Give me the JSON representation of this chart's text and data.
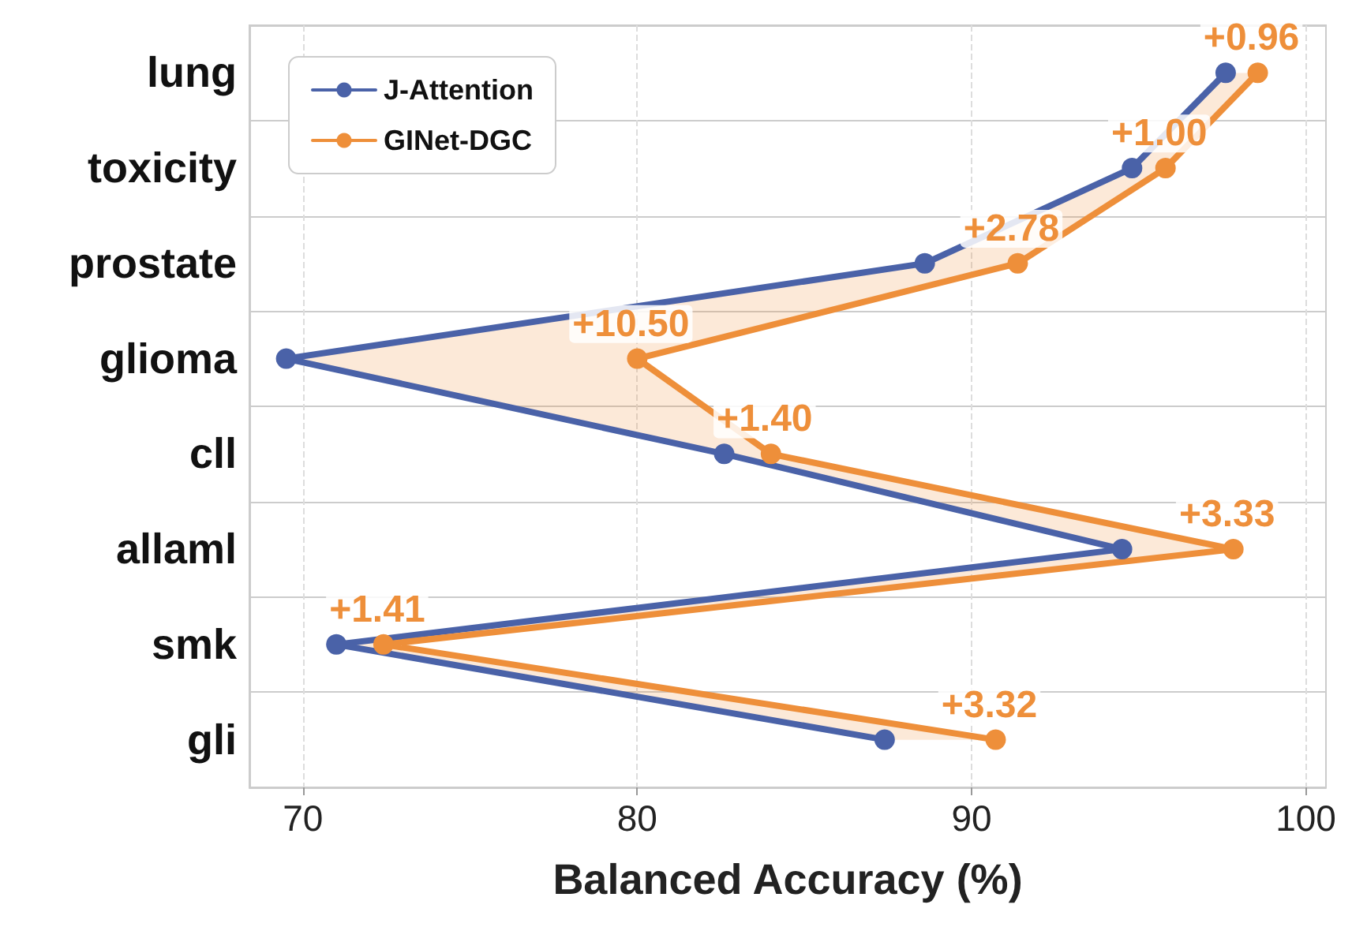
{
  "chart_data": {
    "type": "line",
    "orientation": "horizontal",
    "xlabel": "Balanced Accuracy (%)",
    "categories": [
      "lung",
      "toxicity",
      "prostate",
      "glioma",
      "cll",
      "allaml",
      "smk",
      "gli"
    ],
    "series": [
      {
        "name": "J-Attention",
        "color": "#4a62a8",
        "values": [
          97.6,
          94.8,
          88.6,
          69.5,
          82.6,
          94.5,
          71.0,
          87.4
        ]
      },
      {
        "name": "GINet-DGC",
        "color": "#ee8f3a",
        "values": [
          98.56,
          95.8,
          91.38,
          80.0,
          84.0,
          97.83,
          72.41,
          90.72
        ],
        "lower": [
          97.6,
          94.8,
          88.6,
          69.5,
          82.6,
          94.5,
          71.0,
          87.4
        ],
        "upper": [
          98.56,
          95.8,
          91.38,
          80.0,
          84.0,
          97.83,
          72.41,
          90.72
        ]
      }
    ],
    "xlim": [
      68.4,
      100.6
    ],
    "xticks": [
      70,
      80,
      90,
      100
    ],
    "grid": true,
    "legend": "top left",
    "marker": "circle",
    "line_style": "solid",
    "annotations": [
      {
        "text": "+0.96",
        "x": 98.56,
        "y": "lung"
      },
      {
        "text": "+1.00",
        "x": 95.8,
        "y": "toxicity"
      },
      {
        "text": "+2.78",
        "x": 91.38,
        "y": "prostate"
      },
      {
        "text": "+10.50",
        "x": 80.0,
        "y": "glioma"
      },
      {
        "text": "+1.40",
        "x": 84.0,
        "y": "cll"
      },
      {
        "text": "+3.33",
        "x": 97.83,
        "y": "allaml"
      },
      {
        "text": "+1.41",
        "x": 72.41,
        "y": "smk"
      },
      {
        "text": "+3.32",
        "x": 90.72,
        "y": "gli"
      }
    ]
  }
}
